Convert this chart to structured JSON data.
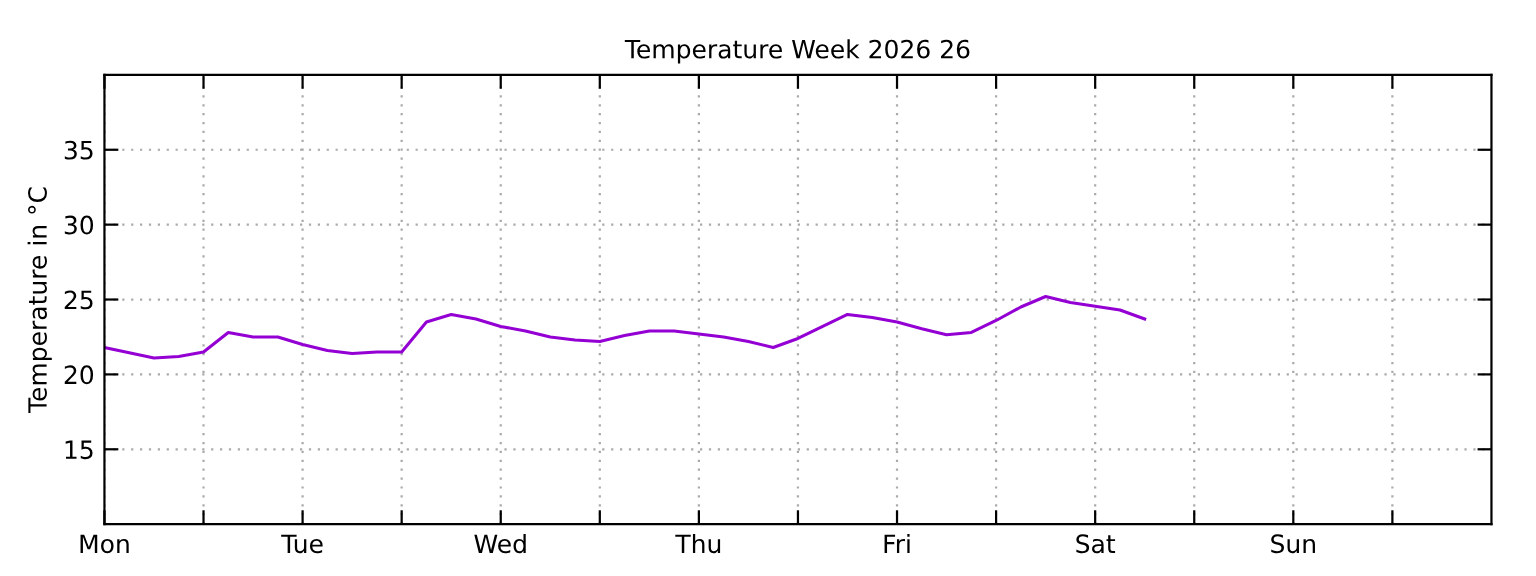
{
  "chart_data": {
    "type": "line",
    "title": "Temperature Week 2026 26",
    "ylabel": "Temperature in °C",
    "categories": [
      "Mon",
      null,
      null,
      null,
      null,
      null,
      null,
      null,
      "Tue",
      null,
      null,
      null,
      null,
      null,
      null,
      null,
      "Wed",
      null,
      null,
      null,
      null,
      null,
      null,
      null,
      "Thu",
      null,
      null,
      null,
      null,
      null,
      null,
      null,
      "Fri",
      null,
      null,
      null,
      null,
      null,
      null,
      null,
      "Sat",
      null,
      null,
      null,
      null,
      null,
      null,
      null,
      "Sun",
      null,
      null,
      null,
      null,
      null,
      null,
      null
    ],
    "series": [
      {
        "color": "#9400d3",
        "values": [
          21.8,
          21.45,
          21.1,
          21.2,
          21.5,
          22.8,
          22.5,
          22.5,
          22.0,
          21.6,
          21.4,
          21.5,
          21.5,
          23.5,
          24.0,
          23.7,
          23.2,
          22.9,
          22.5,
          22.3,
          22.2,
          22.6,
          22.9,
          22.9,
          22.7,
          22.5,
          22.2,
          21.8,
          22.4,
          23.2,
          24.0,
          23.8,
          23.5,
          23.05,
          22.65,
          22.8,
          23.6,
          24.5,
          25.2,
          24.8,
          24.55,
          24.3,
          23.7,
          null,
          null,
          null,
          null,
          null,
          null,
          null,
          null,
          null,
          null,
          null,
          null,
          null
        ]
      }
    ],
    "ylim": [
      10,
      40
    ],
    "yticks": [
      15,
      20,
      25,
      30,
      35
    ],
    "grid": true,
    "marker": "none",
    "line_style": "solid"
  }
}
